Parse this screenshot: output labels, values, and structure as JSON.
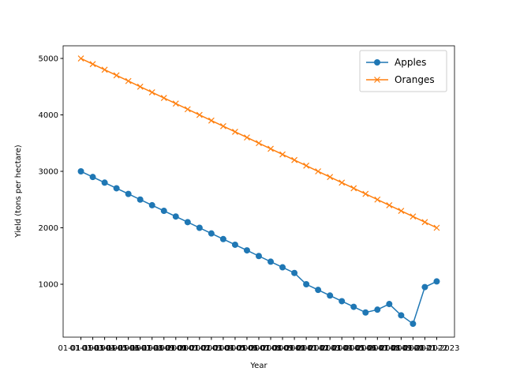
{
  "chart_data": {
    "type": "line",
    "x_label": "Year",
    "y_label": "Yield (tons per hectare)",
    "categories": [
      "01-01-1993",
      "01-01-1994",
      "01-01-1995",
      "01-01-1996",
      "01-01-1997",
      "01-01-1998",
      "01-01-1999",
      "01-01-2000",
      "01-01-2001",
      "01-01-2002",
      "01-01-2003",
      "01-01-2004",
      "01-01-2005",
      "01-01-2006",
      "01-01-2007",
      "01-01-2008",
      "01-01-2009",
      "01-01-2010",
      "01-01-2011",
      "01-01-2012",
      "01-01-2013",
      "01-01-2014",
      "01-01-2015",
      "01-01-2016",
      "01-01-2017",
      "01-01-2018",
      "01-01-2019",
      "01-01-2020",
      "01-01-2021",
      "01-01-2022",
      "01-01-2023"
    ],
    "series": [
      {
        "name": "Apples",
        "color": "#1f77b4",
        "marker": "circle",
        "values": [
          3000,
          2900,
          2800,
          2700,
          2600,
          2500,
          2400,
          2300,
          2200,
          2100,
          2000,
          1900,
          1800,
          1700,
          1600,
          1500,
          1400,
          1300,
          1200,
          1000,
          900,
          800,
          700,
          600,
          500,
          550,
          650,
          450,
          300,
          950,
          1050
        ]
      },
      {
        "name": "Oranges",
        "color": "#ff7f0e",
        "marker": "x",
        "values": [
          5000,
          4900,
          4800,
          4700,
          4600,
          4500,
          4400,
          4300,
          4200,
          4100,
          4000,
          3900,
          3800,
          3700,
          3600,
          3500,
          3400,
          3300,
          3200,
          3100,
          3000,
          2900,
          2800,
          2700,
          2600,
          2500,
          2400,
          2300,
          2200,
          2100,
          2000
        ]
      }
    ],
    "ylim": [
      63,
      5224
    ],
    "yticks": [
      1000,
      2000,
      3000,
      4000,
      5000
    ],
    "grid": false,
    "legend": "upper right"
  }
}
